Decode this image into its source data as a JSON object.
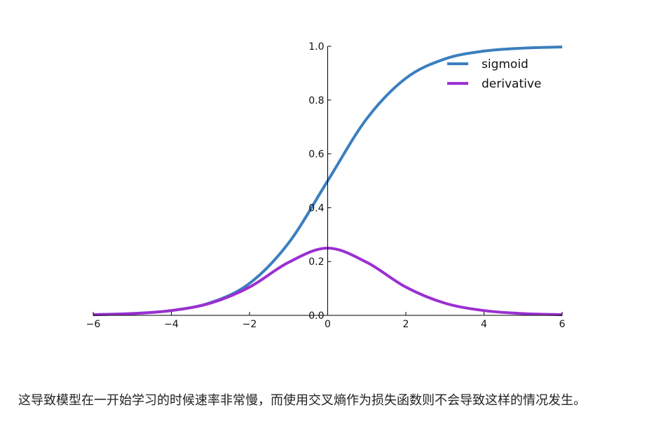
{
  "chart_data": {
    "type": "line",
    "title": "",
    "xlabel": "",
    "ylabel": "",
    "xlim": [
      -6,
      6
    ],
    "ylim": [
      0.0,
      1.0
    ],
    "x_ticks": [
      "−6",
      "−4",
      "−2",
      "0",
      "2",
      "4",
      "6"
    ],
    "x_tick_values": [
      -6,
      -4,
      -2,
      0,
      2,
      4,
      6
    ],
    "y_ticks": [
      "0.0",
      "0.2",
      "0.4",
      "0.6",
      "0.8",
      "1.0"
    ],
    "y_tick_values": [
      0.0,
      0.2,
      0.4,
      0.6,
      0.8,
      1.0
    ],
    "legend_position": "top-right",
    "grid": false,
    "x": [
      -6,
      -5,
      -4,
      -3,
      -2,
      -1,
      0,
      1,
      2,
      3,
      4,
      5,
      6
    ],
    "series": [
      {
        "name": "sigmoid",
        "color": "#3b7fbf",
        "values": [
          0.0025,
          0.0067,
          0.018,
          0.047,
          0.119,
          0.269,
          0.5,
          0.731,
          0.881,
          0.953,
          0.982,
          0.993,
          0.9975
        ]
      },
      {
        "name": "derivative",
        "color": "#9b2fd1",
        "values": [
          0.0025,
          0.0066,
          0.0177,
          0.0452,
          0.105,
          0.197,
          0.25,
          0.197,
          0.105,
          0.0452,
          0.0177,
          0.0066,
          0.0025
        ]
      }
    ]
  },
  "caption": {
    "text": "这导致模型在一开始学习的时候速率非常慢，而使用交叉熵作为损失函数则不会导致这样的情况发生。"
  }
}
